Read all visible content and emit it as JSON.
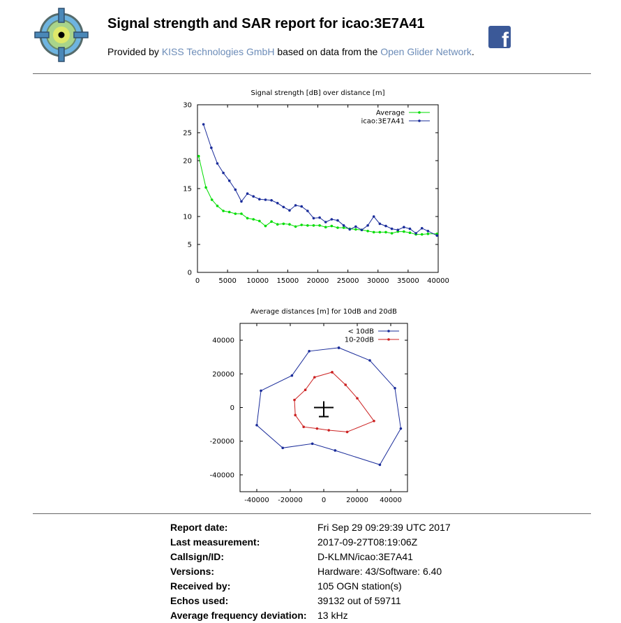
{
  "header": {
    "title": "Signal strength and SAR report for icao:3E7A41",
    "provided_by_prefix": "Provided by ",
    "provider_link": "KISS Technologies GmbH",
    "provided_middle": " based on data from the ",
    "network_link": "Open Glider Network",
    "provided_suffix": ".",
    "logo_icon": "crosshair-target-icon",
    "share_icon": "facebook-icon",
    "link_color": "#6c8cb8"
  },
  "chart_data": [
    {
      "type": "line",
      "title": "Signal strength [dB] over distance [m]",
      "xlabel": "",
      "ylabel": "",
      "xlim": [
        0,
        40000
      ],
      "ylim": [
        0,
        30
      ],
      "xticks": [
        "0",
        "5000",
        "10000",
        "15000",
        "20000",
        "25000",
        "30000",
        "35000",
        "40000"
      ],
      "yticks": [
        "0",
        "5",
        "10",
        "15",
        "20",
        "25",
        "30"
      ],
      "legend_position": "top-right",
      "series": [
        {
          "name": "Average",
          "color": "#00dd00",
          "x": [
            200,
            1400,
            2400,
            3300,
            4300,
            5300,
            6300,
            7300,
            8300,
            9300,
            10300,
            11300,
            12300,
            13300,
            14300,
            15300,
            16300,
            17300,
            18300,
            19300,
            20300,
            21300,
            22300,
            23300,
            24300,
            25300,
            26300,
            27300,
            28300,
            29300,
            30300,
            31300,
            32300,
            33300,
            34300,
            35300,
            36300,
            37300,
            38300,
            39800
          ],
          "y": [
            20.8,
            15.2,
            13.0,
            11.9,
            11.0,
            10.8,
            10.5,
            10.5,
            9.7,
            9.5,
            9.2,
            8.3,
            9.1,
            8.6,
            8.7,
            8.6,
            8.2,
            8.5,
            8.4,
            8.4,
            8.4,
            8.1,
            8.3,
            8.0,
            8.0,
            7.8,
            7.7,
            7.6,
            7.4,
            7.2,
            7.2,
            7.2,
            7.0,
            7.3,
            7.3,
            7.1,
            6.8,
            6.8,
            6.9,
            6.9
          ]
        },
        {
          "name": "icao:3E7A41",
          "color": "#1a2c9a",
          "x": [
            1000,
            2300,
            3300,
            4300,
            5300,
            6300,
            7300,
            8300,
            9300,
            10300,
            11300,
            12300,
            13300,
            14300,
            15300,
            16300,
            17300,
            18300,
            19300,
            20300,
            21300,
            22300,
            23300,
            24300,
            25300,
            26300,
            27300,
            28300,
            29300,
            30300,
            31300,
            32300,
            33300,
            34300,
            35300,
            36300,
            37300,
            38300,
            39800
          ],
          "y": [
            26.5,
            22.3,
            19.5,
            17.8,
            16.4,
            14.8,
            12.7,
            14.1,
            13.6,
            13.1,
            13.0,
            12.9,
            12.4,
            11.7,
            11.1,
            12.0,
            11.8,
            11.0,
            9.7,
            9.8,
            9.0,
            9.5,
            9.3,
            8.4,
            7.7,
            8.2,
            7.6,
            8.4,
            10.0,
            8.7,
            8.3,
            7.8,
            7.6,
            8.1,
            7.8,
            7.0,
            7.9,
            7.4,
            6.6
          ]
        }
      ]
    },
    {
      "type": "line",
      "title": "Average distances [m] for 10dB and 20dB",
      "xlabel": "",
      "ylabel": "",
      "xlim": [
        -50000,
        50000
      ],
      "ylim": [
        -50000,
        50000
      ],
      "xticks": [
        "-40000",
        "-20000",
        "0",
        "20000",
        "40000"
      ],
      "yticks": [
        "40000",
        "20000",
        "0",
        "-20000",
        "-40000"
      ],
      "legend_position": "top-right",
      "center_marker": "aircraft-marker-icon",
      "series": [
        {
          "name": "< 10dB",
          "color": "#1a2c9a",
          "x": [
            9000,
            27500,
            42500,
            46000,
            33500,
            6800,
            -6800,
            -24500,
            -40000,
            -37500,
            -19000,
            -8700,
            9000
          ],
          "y": [
            35500,
            28000,
            11500,
            -12500,
            -34000,
            -25500,
            -21500,
            -24000,
            -10500,
            10000,
            19000,
            33500,
            35500
          ]
        },
        {
          "name": "10-20dB",
          "color": "#cc2222",
          "x": [
            5000,
            13000,
            20000,
            30000,
            14000,
            3000,
            -4000,
            -12000,
            -17000,
            -17500,
            -11000,
            -5500,
            5000
          ],
          "y": [
            21000,
            13500,
            5500,
            -8000,
            -14500,
            -13500,
            -12500,
            -11500,
            -4500,
            4500,
            10500,
            18000,
            21000
          ]
        }
      ]
    }
  ],
  "info": [
    {
      "label": "Report date:",
      "value": "Fri Sep 29 09:29:39 UTC 2017"
    },
    {
      "label": "Last measurement:",
      "value": "2017-09-27T08:19:06Z"
    },
    {
      "label": "Callsign/ID:",
      "value": "D-KLMN/icao:3E7A41"
    },
    {
      "label": "Versions:",
      "value": "Hardware: 43/Software: 6.40"
    },
    {
      "label": "Received by:",
      "value": "105 OGN station(s)"
    },
    {
      "label": "Echos used:",
      "value": "39132 out of 59711"
    },
    {
      "label": "Average frequency deviation:",
      "value": "13 kHz"
    }
  ]
}
